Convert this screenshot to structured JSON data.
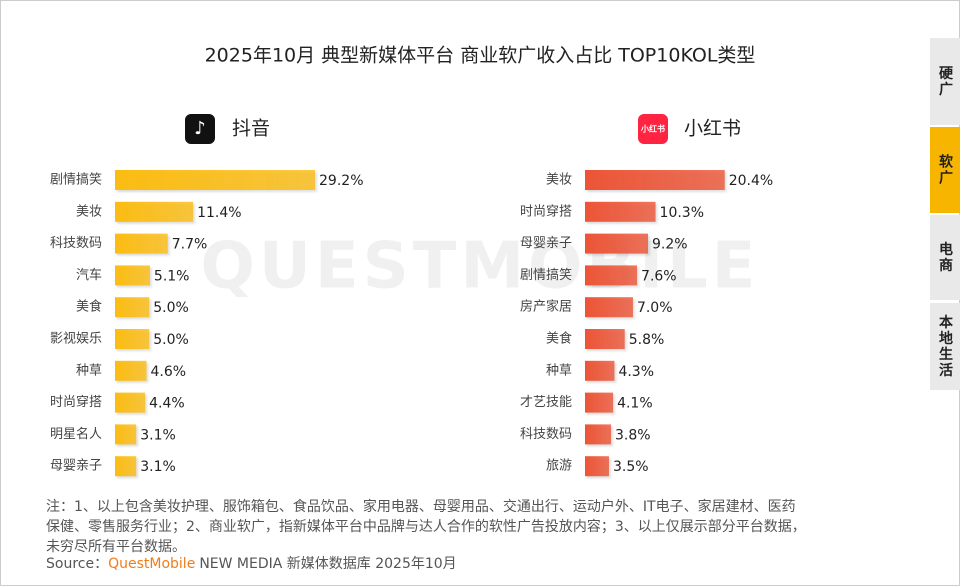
{
  "title": "2025年10月 典型新媒体平台 商业软广收入占比 TOP10KOL类型",
  "watermark": "QUESTMOBILE",
  "tabs": [
    "硬广",
    "软广",
    "电商",
    "本地生活"
  ],
  "active_tab": 1,
  "chart_data": [
    {
      "type": "bar",
      "orientation": "horizontal",
      "title": "抖音",
      "color": "#fbbc12",
      "categories": [
        "剧情搞笑",
        "美妆",
        "科技数码",
        "汽车",
        "美食",
        "影视娱乐",
        "种草",
        "时尚穿搭",
        "明星名人",
        "母婴亲子"
      ],
      "values": [
        29.2,
        11.4,
        7.7,
        5.1,
        5.0,
        5.0,
        4.6,
        4.4,
        3.1,
        3.1
      ],
      "value_labels": [
        "29.2%",
        "11.4%",
        "7.7%",
        "5.1%",
        "5.0%",
        "5.0%",
        "4.6%",
        "4.4%",
        "3.1%",
        "3.1%"
      ]
    },
    {
      "type": "bar",
      "orientation": "horizontal",
      "title": "小红书",
      "color": "#ec5436",
      "categories": [
        "美妆",
        "时尚穿搭",
        "母婴亲子",
        "剧情搞笑",
        "房产家居",
        "美食",
        "种草",
        "才艺技能",
        "科技数码",
        "旅游"
      ],
      "values": [
        20.4,
        10.3,
        9.2,
        7.6,
        7.0,
        5.8,
        4.3,
        4.1,
        3.8,
        3.5
      ],
      "value_labels": [
        "20.4%",
        "10.3%",
        "9.2%",
        "7.6%",
        "7.0%",
        "5.8%",
        "4.3%",
        "4.1%",
        "3.8%",
        "3.5%"
      ]
    }
  ],
  "note": [
    "注：1、以上包含美妆护理、服饰箱包、食品饮品、家用电器、母婴用品、交通出行、运动户外、IT电子、家居建材、医药",
    "保健、零售服务行业；2、商业软广，指新媒体平台中品牌与达人合作的软性广告投放内容；3、以上仅展示部分平台数据，",
    "未穷尽所有平台数据。"
  ],
  "source": {
    "label": "Source：",
    "brand": "QuestMobile",
    "text": "NEW MEDIA 新媒体数据库 2025年10月"
  }
}
